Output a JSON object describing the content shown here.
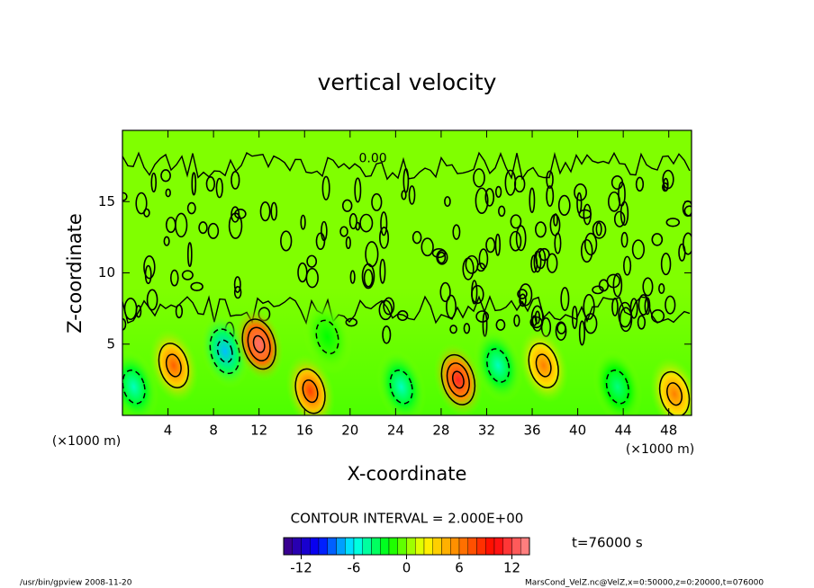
{
  "chart_data": {
    "type": "contour",
    "title": "vertical velocity",
    "x_label": "X-coordinate",
    "y_label": "Z-coordinate",
    "x_unit": "(×1000 m)",
    "y_unit": "(×1000 m)",
    "xlim": [
      0,
      50
    ],
    "ylim": [
      0,
      20
    ],
    "xticks": [
      4,
      8,
      12,
      16,
      20,
      24,
      28,
      32,
      36,
      40,
      44,
      48
    ],
    "yticks": [
      5,
      10,
      15
    ],
    "contour_label": {
      "value": 0,
      "label": "0.00",
      "x": 22,
      "z": 18
    },
    "contour_interval": {
      "value": 2,
      "label": "CONTOUR INTERVAL = 2.000E+00"
    },
    "clim": [
      -14,
      14
    ],
    "cticks": [
      -12,
      -6,
      0,
      6,
      12
    ],
    "colormap": [
      "#400080",
      "#0000ff",
      "#00ffff",
      "#00ff00",
      "#ffff00",
      "#ff8000",
      "#ff0000",
      "#ff9090"
    ],
    "features": [
      {
        "x": 1,
        "z": 2,
        "value": -5
      },
      {
        "x": 4.5,
        "z": 3.5,
        "value": 7
      },
      {
        "x": 9,
        "z": 4.5,
        "value": -7
      },
      {
        "x": 12,
        "z": 5,
        "value": 13
      },
      {
        "x": 16.5,
        "z": 1.7,
        "value": 8
      },
      {
        "x": 18,
        "z": 5.5,
        "value": -2
      },
      {
        "x": 24.5,
        "z": 2,
        "value": -5
      },
      {
        "x": 29.5,
        "z": 2.5,
        "value": 11
      },
      {
        "x": 33,
        "z": 3.5,
        "value": -5
      },
      {
        "x": 37,
        "z": 3.5,
        "value": 6
      },
      {
        "x": 43.5,
        "z": 2,
        "value": -4
      },
      {
        "x": 48.5,
        "z": 1.5,
        "value": 6
      }
    ],
    "time_label": "t=76000 s",
    "footer_left": "/usr/bin/gpview  2008-11-20",
    "footer_right": "MarsCond_VelZ.nc@VelZ,x=0:50000,z=0:20000,t=076000"
  }
}
